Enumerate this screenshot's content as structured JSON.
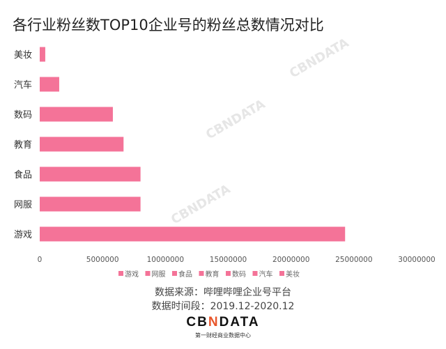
{
  "chart_data": {
    "type": "bar",
    "orientation": "horizontal",
    "title": "各行业粉丝数TOP10企业号的粉丝总数情况对比",
    "categories": [
      "美妆",
      "汽车",
      "数码",
      "教育",
      "食品",
      "网服",
      "游戏"
    ],
    "values": [
      440000,
      1550000,
      5820000,
      6670000,
      8020000,
      8020000,
      24300000
    ],
    "xlim": [
      0,
      30000000
    ],
    "x_ticks": [
      "0",
      "5000000",
      "10000000",
      "15000000",
      "20000000",
      "25000000",
      "30000000"
    ],
    "legend": [
      "游戏",
      "网服",
      "食品",
      "教育",
      "数码",
      "汽车",
      "美妆"
    ],
    "legend_placement": "bottom",
    "grid": false,
    "bar_color": "#f47398"
  },
  "source": "数据来源：哔哩哔哩企业号平台",
  "period": "数据时间段：2019.12-2020.12",
  "logo": {
    "text": "CBNDATA",
    "subtitle": "第一财经商业数据中心"
  },
  "watermark": "CBNDATA"
}
